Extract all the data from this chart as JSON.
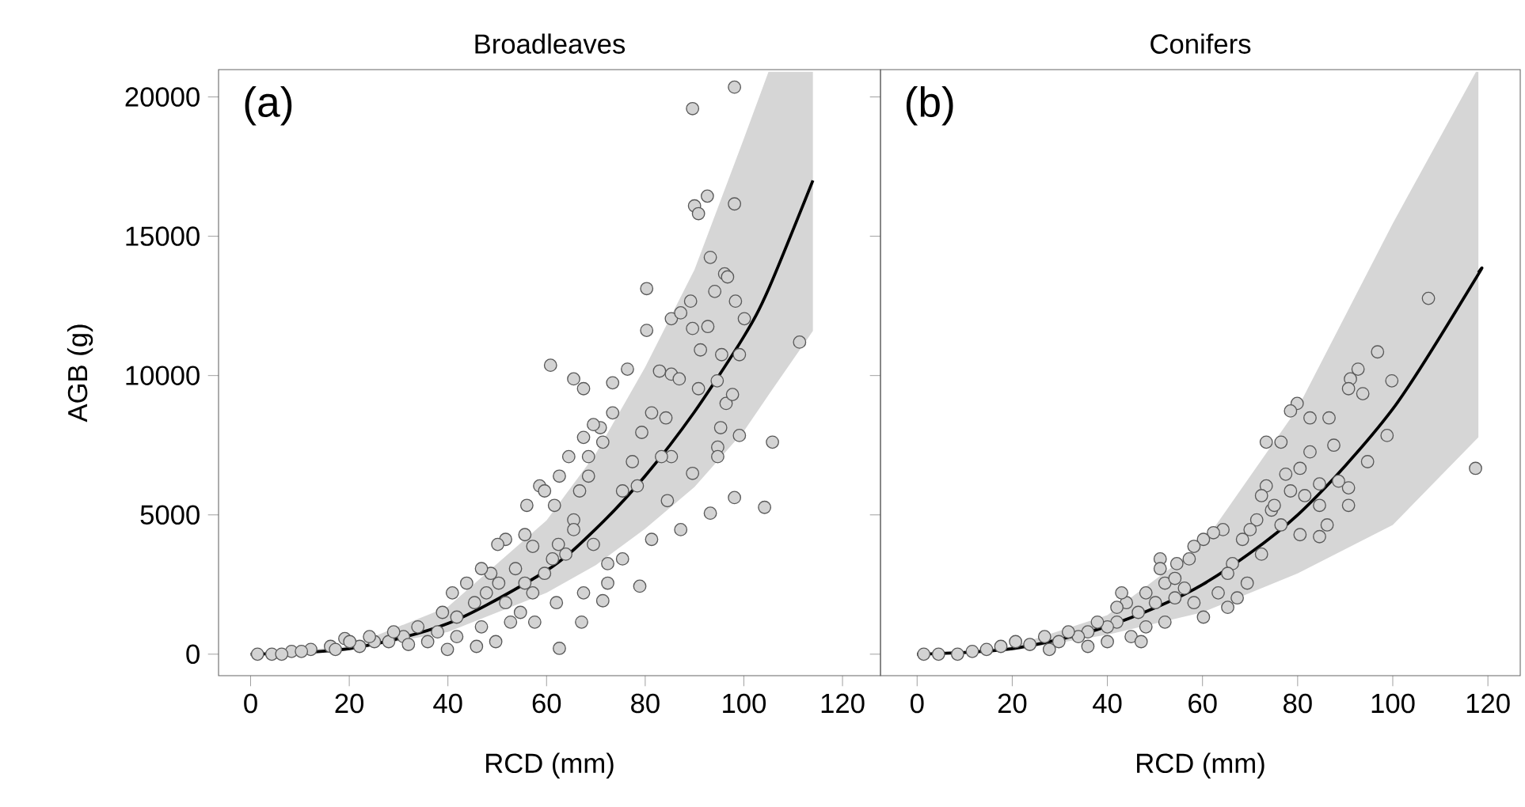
{
  "chart_data": [
    {
      "type": "scatter",
      "title": "Broadleaves",
      "xlabel": "RCD (mm)",
      "ylabel": "AGB (g)",
      "annotations": [
        "(a)"
      ],
      "xlim": [
        -6.5,
        127.7
      ],
      "ylim": [
        -770,
        20980
      ],
      "xticks": [
        0,
        20,
        40,
        60,
        80,
        100,
        120
      ],
      "yticks": [
        0,
        5000,
        10000,
        15000,
        20000
      ],
      "grid": false,
      "series": [
        {
          "marker": "circle",
          "color": "#d3d3d3",
          "x": [
            98.1,
            89.6,
            92.6,
            90.0,
            90.8,
            98.1,
            93.2,
            80.3,
            80.3,
            85.3,
            87.2,
            94.1,
            96.1,
            96.7,
            111.3,
            100.1,
            98.3,
            89.2,
            89.6,
            92.7,
            91.2,
            95.5,
            99.1,
            60.8,
            65.5,
            67.5,
            73.4,
            76.4,
            82.9,
            85.3,
            86.9,
            90.8,
            94.6,
            96.4,
            97.7,
            95.3,
            99.1,
            94.7,
            94.7,
            105.8,
            89.6,
            93.2,
            98.1,
            104.2,
            85.3,
            79.3,
            81.3,
            84.2,
            77.4,
            75.4,
            71.4,
            70.9,
            68.5,
            68.5,
            66.7,
            65.5,
            63.9,
            62.4,
            61.2,
            59.6,
            61.6,
            58.6,
            56.0,
            55.6,
            51.7,
            50.1,
            53.7,
            50.3,
            55.6,
            57.2,
            62.0,
            67.5,
            71.4,
            62.6,
            78.9,
            75.4,
            72.4,
            69.5,
            65.5,
            45.4,
            43.8,
            47.8,
            41.8,
            46.8,
            49.7,
            41.8,
            37.9,
            35.9,
            33.9,
            31.0,
            28.0,
            25.1,
            22.1,
            19.1,
            16.2,
            12.2,
            8.3,
            4.3,
            1.4,
            39.9,
            45.8,
            52.7,
            54.7,
            57.6,
            51.7,
            48.7,
            46.8,
            57.2,
            67.1,
            72.4,
            84.5,
            87.2,
            81.3,
            78.4,
            83.3,
            73.4,
            69.5,
            67.5,
            64.5,
            62.6,
            59.6,
            24.1,
            20.1,
            17.2,
            10.3,
            6.3,
            32.0,
            29.0,
            38.9,
            40.9
          ],
          "values": [
            20350,
            19580,
            16440,
            16090,
            15810,
            16160,
            14240,
            13120,
            11620,
            12040,
            12250,
            13020,
            13650,
            13540,
            11200,
            12040,
            12670,
            12670,
            11690,
            11760,
            10920,
            10750,
            10750,
            10370,
            9880,
            9530,
            9740,
            10230,
            10160,
            10050,
            9880,
            9530,
            9810,
            9000,
            9320,
            8130,
            7850,
            7430,
            7090,
            7610,
            6490,
            5060,
            5620,
            5270,
            7090,
            7960,
            8660,
            8480,
            6910,
            5860,
            7610,
            8130,
            7090,
            6390,
            5860,
            4820,
            3590,
            3940,
            3420,
            2900,
            5340,
            6040,
            5340,
            4290,
            4120,
            3940,
            3070,
            2550,
            2550,
            2200,
            1850,
            2200,
            1920,
            210,
            2440,
            3420,
            3250,
            3940,
            4470,
            1850,
            2550,
            2200,
            1330,
            980,
            450,
            630,
            800,
            450,
            980,
            630,
            450,
            450,
            280,
            560,
            280,
            170,
            100,
            0,
            0,
            170,
            280,
            1150,
            1500,
            1150,
            1850,
            2900,
            3070,
            3870,
            1150,
            2550,
            5510,
            4470,
            4120,
            6040,
            7090,
            8660,
            8240,
            7780,
            7090,
            6390,
            5860,
            630,
            450,
            170,
            100,
            0,
            350,
            800,
            1500,
            2200
          ]
        },
        {
          "type": "line",
          "marker": "none",
          "line_style": "solid",
          "color": "#000000",
          "x": [
            0,
            20,
            40,
            60,
            70,
            80,
            90,
            100,
            105,
            114
          ],
          "values": [
            0,
            200,
            1100,
            3000,
            4500,
            6400,
            8700,
            11400,
            13100,
            17000
          ],
          "lower": [
            0,
            140,
            800,
            2200,
            3200,
            4500,
            6000,
            8000,
            9300,
            11600
          ],
          "upper": [
            0,
            280,
            1700,
            4800,
            7200,
            10300,
            13800,
            18500,
            20900,
            20900
          ]
        }
      ]
    },
    {
      "type": "scatter",
      "title": "Conifers",
      "xlabel": "RCD (mm)",
      "annotations": [
        "(b)"
      ],
      "xlim": [
        -7.7,
        126.8
      ],
      "ylim": [
        -770,
        20980
      ],
      "xticks": [
        0,
        20,
        40,
        60,
        80,
        100,
        120
      ],
      "yticks": [
        0,
        5000,
        10000,
        15000,
        20000
      ],
      "tick_labels": "x",
      "grid": false,
      "series": [
        {
          "marker": "circle",
          "color": "#d3d3d3",
          "x": [
            107.5,
            96.8,
            92.7,
            91.1,
            93.7,
            90.7,
            99.8,
            98.8,
            94.7,
            90.7,
            90.7,
            117.4,
            79.9,
            78.5,
            82.6,
            76.5,
            73.4,
            86.6,
            87.6,
            82.6,
            80.5,
            77.5,
            84.6,
            88.6,
            84.6,
            86.2,
            84.6,
            80.5,
            76.5,
            73.4,
            72.4,
            74.5,
            71.4,
            70.0,
            68.4,
            64.3,
            62.3,
            60.2,
            58.2,
            66.3,
            69.4,
            67.3,
            65.3,
            57.2,
            54.6,
            52.1,
            51.1,
            56.2,
            58.2,
            54.2,
            50.1,
            46.5,
            48.1,
            44.0,
            42.0,
            40.0,
            37.9,
            35.9,
            33.9,
            31.8,
            29.8,
            26.8,
            23.7,
            20.7,
            17.6,
            14.6,
            11.6,
            8.5,
            4.5,
            1.4,
            45.0,
            47.1,
            52.1,
            60.2,
            63.3,
            48.1,
            35.9,
            27.8,
            40.0,
            51.1,
            54.2,
            65.3,
            72.4,
            75.1,
            81.5,
            78.5,
            42.0,
            43.0
          ],
          "values": [
            12770,
            10850,
            10230,
            9880,
            9350,
            9530,
            9810,
            7850,
            6910,
            5970,
            5340,
            6670,
            9000,
            8730,
            8480,
            7610,
            7610,
            8480,
            7500,
            7260,
            6670,
            6460,
            6110,
            6210,
            5340,
            4640,
            4220,
            4290,
            4640,
            6040,
            5690,
            5170,
            4820,
            4470,
            4120,
            4470,
            4360,
            4120,
            3870,
            3250,
            2550,
            2020,
            1680,
            3420,
            3250,
            2550,
            3420,
            2370,
            1850,
            2020,
            1850,
            1500,
            2200,
            1850,
            1150,
            980,
            1150,
            800,
            630,
            800,
            450,
            630,
            350,
            450,
            280,
            170,
            100,
            0,
            0,
            0,
            630,
            450,
            1150,
            1330,
            2200,
            980,
            280,
            170,
            450,
            3070,
            2720,
            2900,
            3590,
            5340,
            5690,
            5860,
            1680,
            2200
          ]
        },
        {
          "type": "line",
          "marker": "none",
          "line_style": "solid",
          "color": "#000000",
          "x": [
            0,
            20,
            40,
            60,
            80,
            100,
            117.5,
            118
          ],
          "values": [
            0,
            200,
            1000,
            2500,
            5000,
            8800,
            13500,
            13700
          ],
          "lower": [
            0,
            130,
            700,
            1500,
            2900,
            4640,
            7700,
            7780
          ],
          "upper": [
            0,
            280,
            1400,
            3940,
            8830,
            15460,
            20900,
            20900
          ]
        }
      ]
    }
  ]
}
